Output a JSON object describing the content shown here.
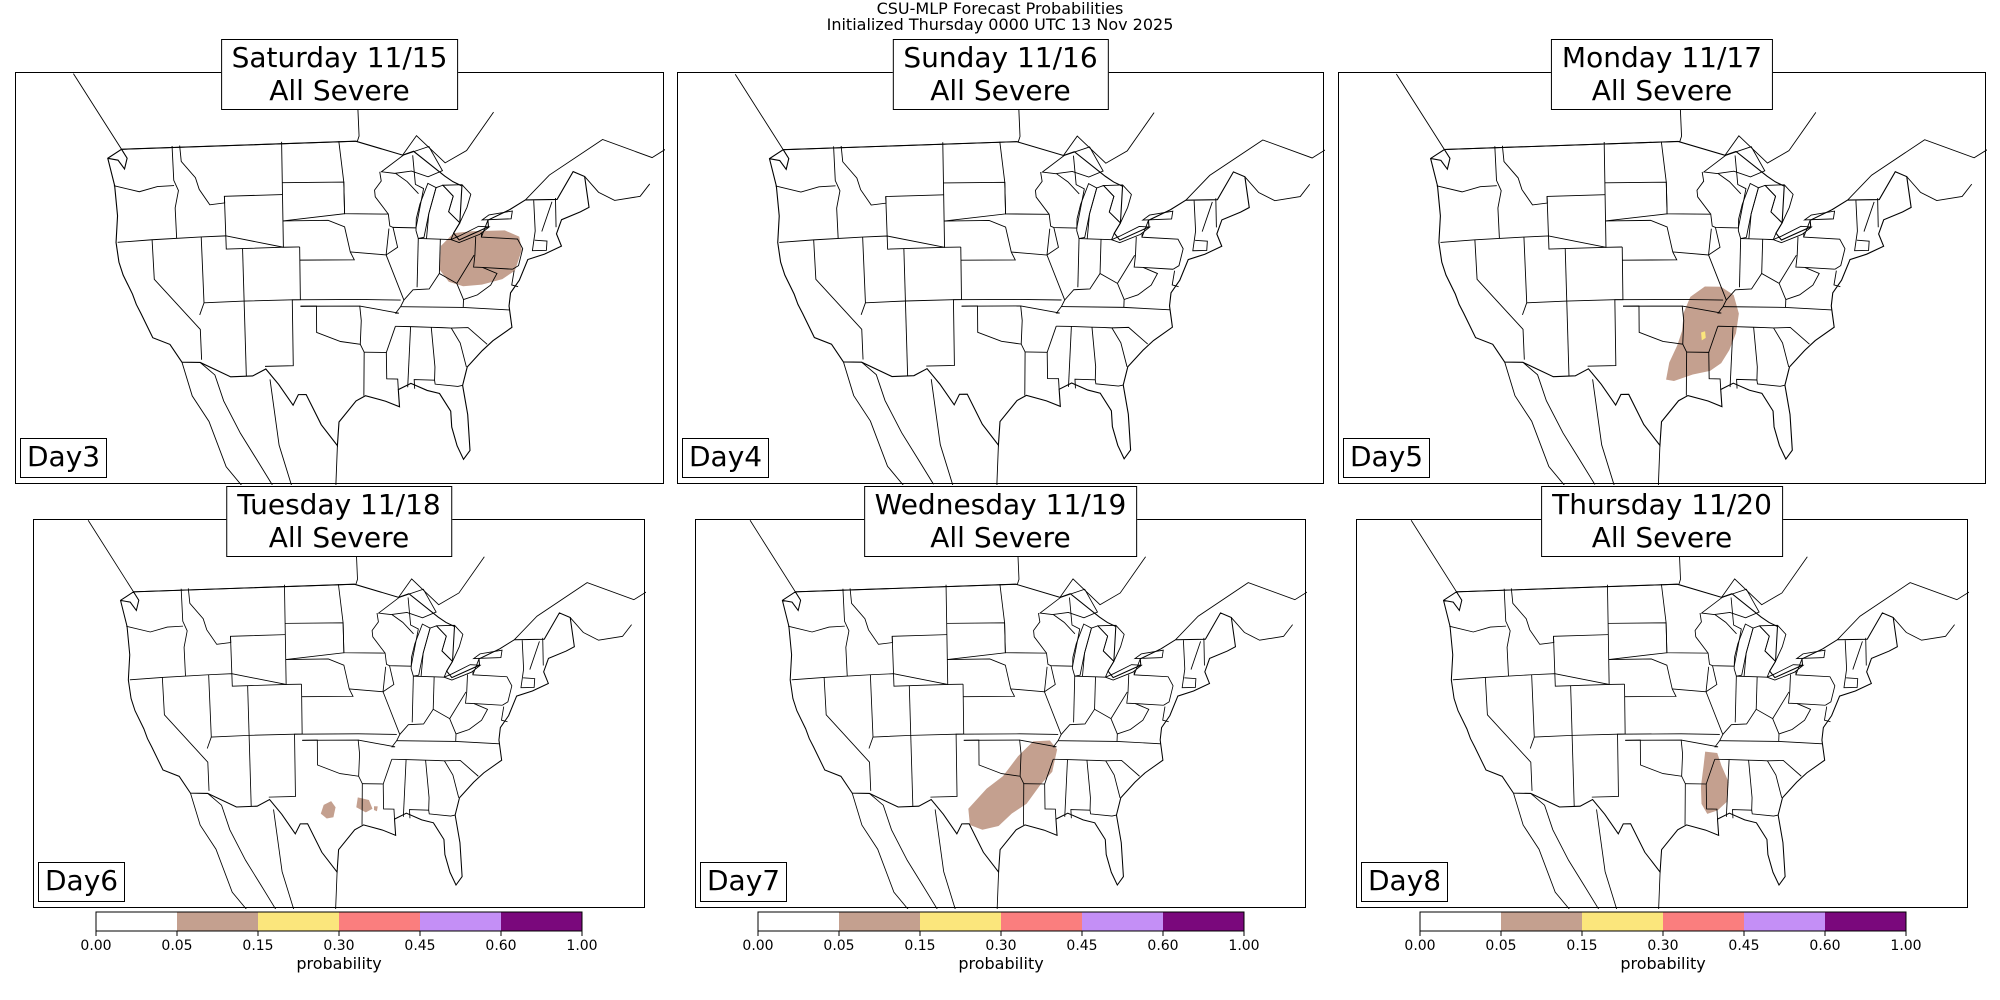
{
  "header": {
    "line1": "CSU-MLP Forecast Probabilities",
    "line2": "Initialized Thursday 0000 UTC 13 Nov 2025"
  },
  "panels": [
    {
      "title1": "Saturday 11/15",
      "title2": "All Severe",
      "day": "Day3",
      "forecast_area": "Ohio Valley / Pennsylvania",
      "max_category": "0.05-0.15"
    },
    {
      "title1": "Sunday 11/16",
      "title2": "All Severe",
      "day": "Day4",
      "forecast_area": "none",
      "max_category": "0.00-0.05"
    },
    {
      "title1": "Monday 11/17",
      "title2": "All Severe",
      "day": "Day5",
      "forecast_area": "Lower Mississippi Valley",
      "max_category": "0.15-0.30"
    },
    {
      "title1": "Tuesday 11/18",
      "title2": "All Severe",
      "day": "Day6",
      "forecast_area": "Central Texas / Louisiana",
      "max_category": "0.05-0.15"
    },
    {
      "title1": "Wednesday 11/19",
      "title2": "All Severe",
      "day": "Day7",
      "forecast_area": "Texas to Arkansas",
      "max_category": "0.05-0.15"
    },
    {
      "title1": "Thursday 11/20",
      "title2": "All Severe",
      "day": "Day8",
      "forecast_area": "Mississippi / Louisiana",
      "max_category": "0.05-0.15"
    }
  ],
  "colorbar": {
    "label": "probability",
    "ticks": [
      "0.00",
      "0.05",
      "0.15",
      "0.30",
      "0.45",
      "0.60",
      "1.00"
    ],
    "colors": [
      "#ffffff",
      "#c4a08f",
      "#fbe67c",
      "#fa7e7e",
      "#c48ff6",
      "#7a087c"
    ]
  },
  "colors": {
    "fill_low": "#c4a08f",
    "fill_mid": "#fbe67c",
    "border": "#000000"
  }
}
